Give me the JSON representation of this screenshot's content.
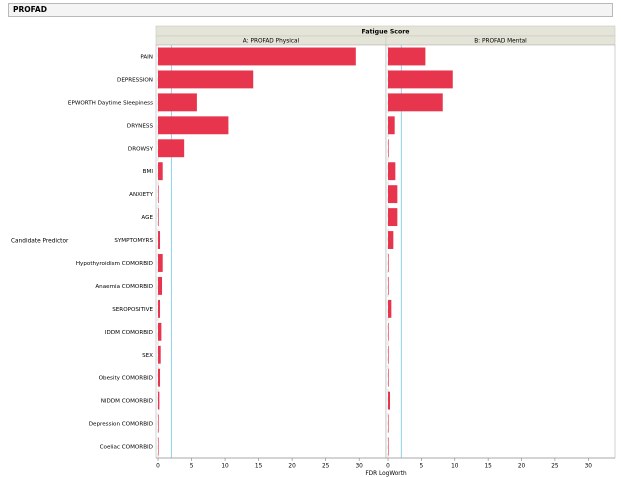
{
  "report": {
    "title": "PROFAD"
  },
  "chart_data": {
    "type": "bar",
    "orientation": "horizontal",
    "group_title": "Fatigue Score",
    "xlabel": "FDR LogWorth",
    "ylabel": "Candidate Predictor",
    "xlim": [
      -0.3,
      34
    ],
    "xticks": [
      0,
      5,
      10,
      15,
      20,
      25,
      30
    ],
    "reference_line": 2,
    "grid": false,
    "colors": {
      "bar": "#e8354e",
      "reference": "#8fd3e8",
      "panel_header": "#e4e4d8",
      "panel_bg": "#ffffff"
    },
    "categories": [
      "PAIN",
      "DEPRESSION",
      "EPWORTH Daytime Sleepiness",
      "DRYNESS",
      "DROWSY",
      "BMI",
      "ANXIETY",
      "AGE",
      "SYMPTOMYRS",
      "Hypothyroidism COMORBID",
      "Anaemia COMORBID",
      "SEROPOSITIVE",
      "IDDM COMORBID",
      "SEX",
      "Obesity COMORBID",
      "NIDDM COMORBID",
      "Depression COMORBID",
      "Coeliac COMORBID"
    ],
    "series": [
      {
        "name": "A: PROFAD Physical",
        "values": [
          29.5,
          14.2,
          5.8,
          10.5,
          3.9,
          0.7,
          0.1,
          0.1,
          0.3,
          0.7,
          0.6,
          0.3,
          0.5,
          0.4,
          0.3,
          0.2,
          0.1,
          0.05
        ]
      },
      {
        "name": "B: PROFAD Mental",
        "values": [
          5.6,
          9.7,
          8.2,
          1.0,
          0.1,
          1.1,
          1.4,
          1.4,
          0.8,
          0.1,
          0.1,
          0.5,
          0.1,
          0.1,
          0.1,
          0.3,
          0.05,
          0.05
        ]
      }
    ]
  }
}
